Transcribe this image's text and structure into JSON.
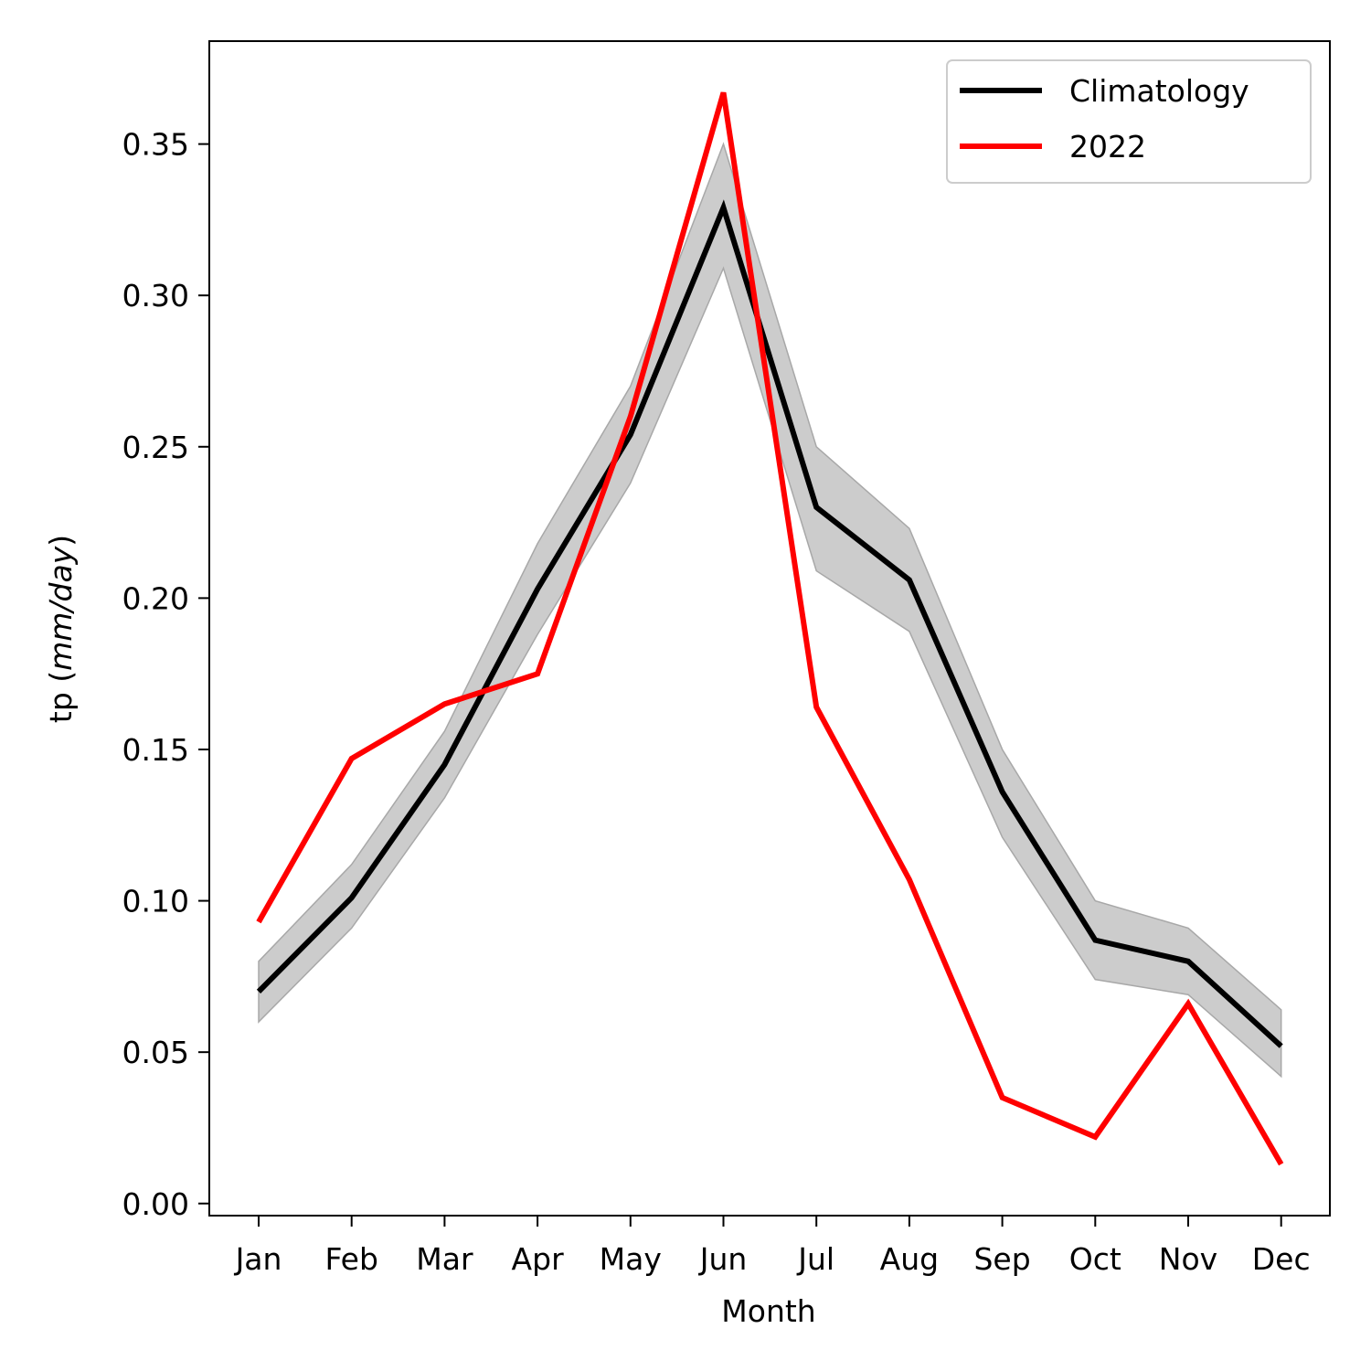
{
  "chart_data": {
    "type": "line",
    "title": "",
    "xlabel": "Month",
    "ylabel_main": "tp (",
    "ylabel_unit": "mm/day",
    "ylabel_close": ")",
    "categories": [
      "Jan",
      "Feb",
      "Mar",
      "Apr",
      "May",
      "Jun",
      "Jul",
      "Aug",
      "Sep",
      "Oct",
      "Nov",
      "Dec"
    ],
    "ylim": [
      -0.004,
      0.384
    ],
    "yticks": [
      "0.00",
      "0.05",
      "0.10",
      "0.15",
      "0.20",
      "0.25",
      "0.30",
      "0.35"
    ],
    "grid": false,
    "legend_position": "top-right",
    "series": [
      {
        "name": "Climatology",
        "color": "#000000",
        "values": [
          0.07,
          0.101,
          0.145,
          0.203,
          0.254,
          0.329,
          0.23,
          0.206,
          0.136,
          0.087,
          0.08,
          0.052
        ],
        "band_lower": [
          0.06,
          0.091,
          0.134,
          0.188,
          0.238,
          0.309,
          0.209,
          0.189,
          0.121,
          0.074,
          0.069,
          0.042
        ],
        "band_upper": [
          0.08,
          0.112,
          0.156,
          0.218,
          0.27,
          0.35,
          0.25,
          0.223,
          0.15,
          0.1,
          0.091,
          0.064
        ],
        "band_color": "#bfbfbf"
      },
      {
        "name": "2022",
        "color": "#ff0000",
        "values": [
          0.093,
          0.147,
          0.165,
          0.175,
          0.26,
          0.367,
          0.164,
          0.107,
          0.035,
          0.022,
          0.066,
          0.013
        ]
      }
    ]
  }
}
